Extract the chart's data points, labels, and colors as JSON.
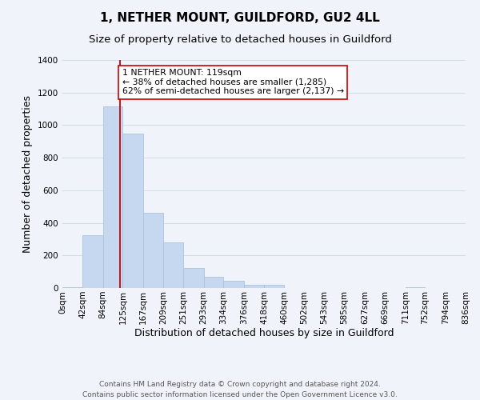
{
  "title": "1, NETHER MOUNT, GUILDFORD, GU2 4LL",
  "subtitle": "Size of property relative to detached houses in Guildford",
  "xlabel": "Distribution of detached houses by size in Guildford",
  "ylabel": "Number of detached properties",
  "bar_values": [
    5,
    325,
    1115,
    950,
    460,
    280,
    125,
    70,
    45,
    20,
    20,
    0,
    0,
    0,
    0,
    0,
    0,
    5,
    0,
    0
  ],
  "bin_edges": [
    0,
    42,
    84,
    125,
    167,
    209,
    251,
    293,
    334,
    376,
    418,
    460,
    502,
    543,
    585,
    627,
    669,
    711,
    752,
    794,
    836
  ],
  "tick_labels": [
    "0sqm",
    "42sqm",
    "84sqm",
    "125sqm",
    "167sqm",
    "209sqm",
    "251sqm",
    "293sqm",
    "334sqm",
    "376sqm",
    "418sqm",
    "460sqm",
    "502sqm",
    "543sqm",
    "585sqm",
    "627sqm",
    "669sqm",
    "711sqm",
    "752sqm",
    "794sqm",
    "836sqm"
  ],
  "bar_color": "#c5d8f0",
  "bar_edge_color": "#aac4e0",
  "vline_x": 119,
  "vline_color": "#cc0000",
  "annotation_text": "1 NETHER MOUNT: 119sqm\n← 38% of detached houses are smaller (1,285)\n62% of semi-detached houses are larger (2,137) →",
  "annotation_box_color": "#ffffff",
  "annotation_box_edge": "#cc0000",
  "ylim": [
    0,
    1400
  ],
  "yticks": [
    0,
    200,
    400,
    600,
    800,
    1000,
    1200,
    1400
  ],
  "footer_line1": "Contains HM Land Registry data © Crown copyright and database right 2024.",
  "footer_line2": "Contains public sector information licensed under the Open Government Licence v3.0.",
  "background_color": "#f0f4fa",
  "grid_color": "#d0dce8",
  "title_fontsize": 11,
  "subtitle_fontsize": 9.5,
  "axis_label_fontsize": 9,
  "tick_fontsize": 7.5,
  "footer_fontsize": 6.5,
  "annotation_fontsize": 7.8
}
